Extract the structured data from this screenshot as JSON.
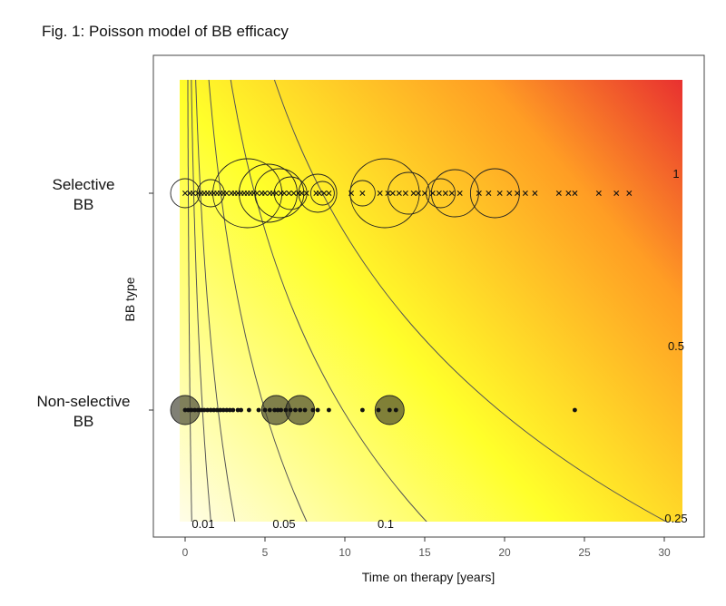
{
  "figure": {
    "title": "Fig. 1: Poisson model of BB efficacy"
  },
  "chart_data": {
    "type": "scatter",
    "title": "Fig. 1: Poisson model of BB efficacy",
    "xlabel": "Time on therapy [years]",
    "ylabel": "BB type",
    "xlim": [
      -1.6,
      31
    ],
    "xticks": [
      0,
      5,
      10,
      15,
      20,
      25,
      30
    ],
    "categories": [
      {
        "key": "selective",
        "label_lines": [
          "Selective",
          "BB"
        ]
      },
      {
        "key": "nonselective",
        "label_lines": [
          "Non-selective",
          "BB"
        ]
      }
    ],
    "background": {
      "description_free": true,
      "colors": [
        "#fffde8",
        "#ffff2a",
        "#ff9d24",
        "#e83030"
      ]
    },
    "contours": [
      {
        "label": "0.01",
        "k": 0.01
      },
      {
        "label": "0.05",
        "k": 0.05
      },
      {
        "label": "0.1",
        "k": 0.1
      },
      {
        "label": "0.25",
        "k": 0.25
      },
      {
        "label": "0.5",
        "k": 0.5
      },
      {
        "label": "1",
        "k": 1
      }
    ],
    "series": [
      {
        "key": "selective",
        "marker": "x",
        "events": [
          {
            "x": 0.0,
            "r": 16
          },
          {
            "x": 1.6,
            "r": 15
          },
          {
            "x": 3.9,
            "r": 38
          },
          {
            "x": 5.2,
            "r": 32
          },
          {
            "x": 5.9,
            "r": 27
          },
          {
            "x": 6.6,
            "r": 18
          },
          {
            "x": 8.3,
            "r": 21
          },
          {
            "x": 8.6,
            "r": 13
          },
          {
            "x": 11.1,
            "r": 14
          },
          {
            "x": 12.5,
            "r": 38
          },
          {
            "x": 14.0,
            "r": 23
          },
          {
            "x": 16.0,
            "r": 16
          },
          {
            "x": 16.9,
            "r": 26
          },
          {
            "x": 19.4,
            "r": 27
          }
        ],
        "points": [
          0.0,
          0.3,
          0.5,
          0.8,
          1.0,
          1.2,
          1.4,
          1.6,
          1.8,
          2.0,
          2.2,
          2.4,
          2.6,
          2.9,
          3.1,
          3.3,
          3.5,
          3.7,
          3.9,
          4.1,
          4.3,
          4.5,
          4.8,
          5.0,
          5.3,
          5.5,
          5.7,
          6.0,
          6.2,
          6.5,
          6.8,
          7.1,
          7.3,
          7.6,
          8.2,
          8.4,
          8.7,
          9.0,
          10.4,
          11.1,
          12.2,
          12.7,
          13.0,
          13.4,
          13.8,
          14.3,
          14.6,
          15.0,
          15.5,
          15.9,
          16.3,
          16.7,
          17.2,
          18.4,
          19.0,
          19.7,
          20.3,
          20.8,
          21.3,
          21.9,
          23.4,
          24.0,
          24.4,
          25.9,
          27.0,
          27.8
        ]
      },
      {
        "key": "nonselective",
        "marker": "dot",
        "events": [
          {
            "x": 0.0,
            "r": 16
          },
          {
            "x": 5.7,
            "r": 16
          },
          {
            "x": 7.2,
            "r": 16
          },
          {
            "x": 12.8,
            "r": 16
          }
        ],
        "points": [
          0.0,
          0.2,
          0.4,
          0.6,
          0.8,
          1.0,
          1.2,
          1.4,
          1.6,
          1.8,
          2.0,
          2.2,
          2.4,
          2.6,
          2.8,
          3.0,
          3.3,
          3.5,
          4.0,
          4.6,
          5.0,
          5.3,
          5.6,
          5.8,
          6.0,
          6.3,
          6.6,
          6.9,
          7.2,
          7.5,
          8.0,
          8.3,
          9.0,
          11.1,
          12.1,
          12.8,
          13.2,
          24.4
        ]
      }
    ]
  }
}
